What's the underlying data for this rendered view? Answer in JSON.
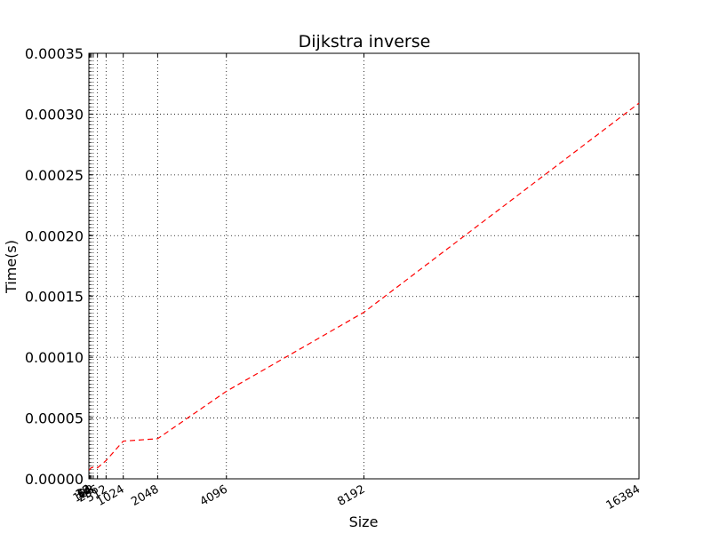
{
  "chart_data": {
    "type": "line",
    "title": "Dijkstra inverse",
    "xlabel": "Size",
    "ylabel": "Time(s)",
    "xlim": [
      0,
      16384
    ],
    "ylim": [
      0,
      0.00035
    ],
    "grid": true,
    "x_ticks": [
      16,
      32,
      64,
      128,
      256,
      512,
      1024,
      2048,
      4096,
      8192,
      16384
    ],
    "y_ticks": [
      0.0,
      5e-05,
      0.0001,
      0.00015,
      0.0002,
      0.00025,
      0.0003,
      0.00035
    ],
    "y_tick_labels": [
      "0.00000",
      "0.00005",
      "0.00010",
      "0.00015",
      "0.00020",
      "0.00025",
      "0.00030",
      "0.00035"
    ],
    "series": [
      {
        "color": "#ff0000",
        "line_style": "dashed",
        "x": [
          16,
          32,
          64,
          128,
          256,
          512,
          1024,
          2048,
          4096,
          8192,
          16384
        ],
        "y": [
          7e-06,
          8e-06,
          9e-06,
          9.5e-06,
          9e-06,
          1.5e-05,
          3.1e-05,
          3.3e-05,
          7.2e-05,
          0.000137,
          0.000309
        ]
      }
    ]
  }
}
